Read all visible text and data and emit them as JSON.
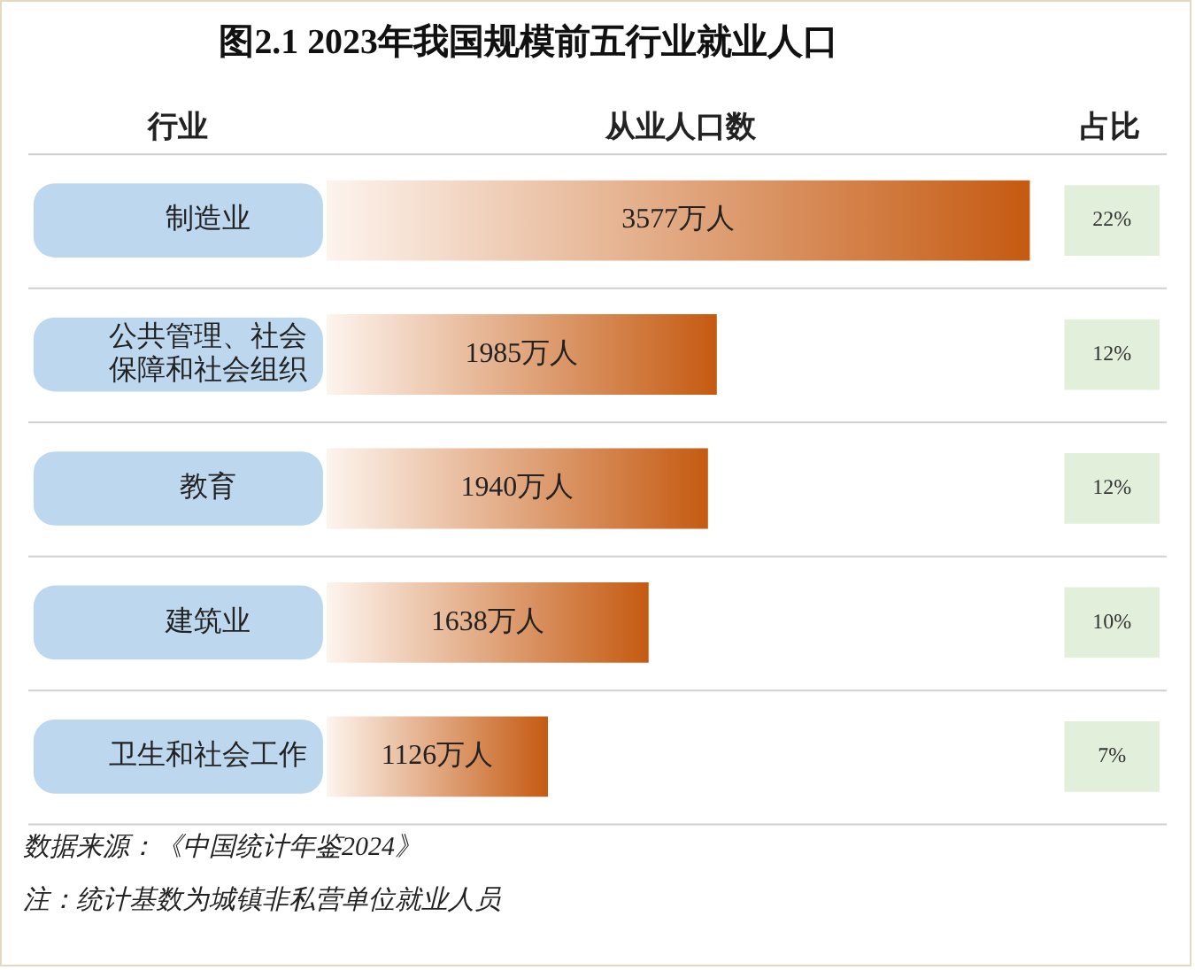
{
  "chart_data": {
    "type": "bar",
    "orientation": "horizontal",
    "title": "图2.1 2023年我国规模前五行业就业人口",
    "ylabel": "行业",
    "xlabel": "从业人口数",
    "categories": [
      "制造业",
      "公共管理、社会保障和社会组织",
      "教育",
      "建筑业",
      "卫生和社会工作"
    ],
    "values": [
      3577,
      1985,
      1940,
      1638,
      1126
    ],
    "value_labels": [
      "3577万人",
      "1985万人",
      "1940万人",
      "1638万人",
      "1126万人"
    ],
    "color": "#c55a11",
    "xlim": [
      0,
      3600
    ],
    "tick_labels": "y",
    "annotations": [
      "占比",
      "22%",
      "12%",
      "12%",
      "10%",
      "7%",
      "数据来源：《中国统计年鉴2024》",
      "注：统计基数为城镇非私营单位就业人员"
    ]
  }
}
